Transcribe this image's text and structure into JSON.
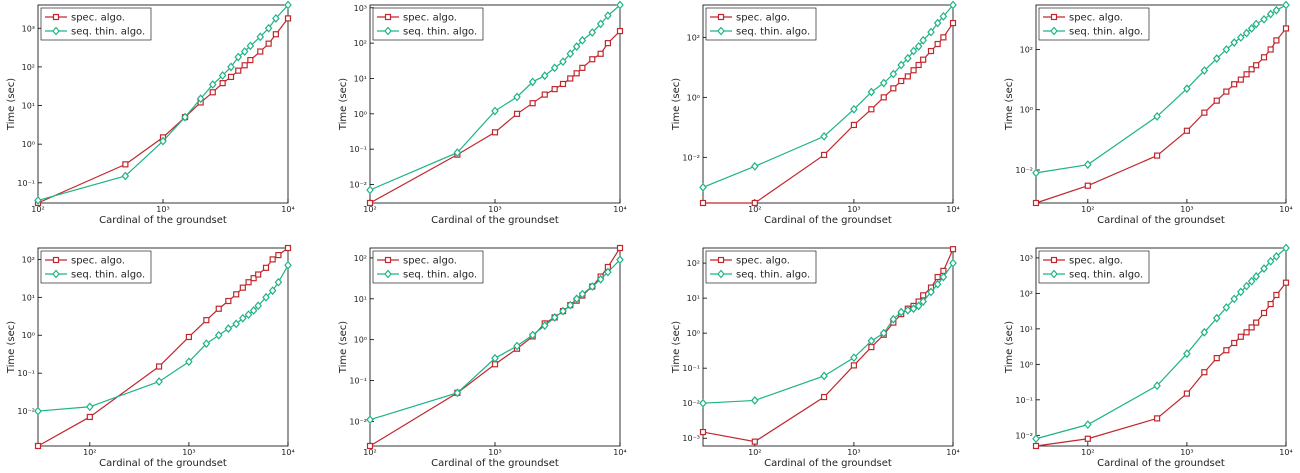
{
  "chart_data": [
    {
      "type": "line",
      "xlabel": "Cardinal of the groundset",
      "ylabel": "Time (sec)",
      "xscale": "log",
      "yscale": "log",
      "legend": "upper left",
      "x": [
        100,
        500,
        1000,
        1500,
        2000,
        2500,
        3000,
        3500,
        4000,
        4500,
        5000,
        6000,
        7000,
        8000,
        10000
      ],
      "xlim": [
        100,
        10000
      ],
      "ylim": [
        0.03,
        4000
      ],
      "xticks": [
        {
          "value": 100,
          "label": "10²"
        },
        {
          "value": 1000,
          "label": "10³"
        },
        {
          "value": 10000,
          "label": "10⁴"
        }
      ],
      "yticks": [
        {
          "value": 0.1,
          "label": "10⁻¹"
        },
        {
          "value": 1,
          "label": "10⁰"
        },
        {
          "value": 10,
          "label": "10¹"
        },
        {
          "value": 100,
          "label": "10²"
        },
        {
          "value": 1000,
          "label": "10³"
        }
      ],
      "series": [
        {
          "name": "spec. algo.",
          "color": "#c1272d",
          "marker": "square",
          "values": [
            0.03,
            0.3,
            1.5,
            5,
            12,
            22,
            38,
            55,
            80,
            110,
            150,
            250,
            400,
            700,
            1800
          ]
        },
        {
          "name": "seq. thin. algo.",
          "color": "#1db386",
          "marker": "diamond",
          "values": [
            0.035,
            0.15,
            1.2,
            5,
            15,
            35,
            60,
            100,
            180,
            250,
            350,
            600,
            1000,
            1800,
            4000
          ]
        }
      ]
    },
    {
      "type": "line",
      "xlabel": "Cardinal of the groundset",
      "ylabel": "Time (sec)",
      "xscale": "log",
      "yscale": "log",
      "legend": "upper left",
      "x": [
        100,
        500,
        1000,
        1500,
        2000,
        2500,
        3000,
        3500,
        4000,
        4500,
        5000,
        6000,
        7000,
        8000,
        10000
      ],
      "xlim": [
        100,
        10000
      ],
      "ylim": [
        0.003,
        1200
      ],
      "xticks": [
        {
          "value": 100,
          "label": "10²"
        },
        {
          "value": 1000,
          "label": "10³"
        },
        {
          "value": 10000,
          "label": "10⁴"
        }
      ],
      "yticks": [
        {
          "value": 0.01,
          "label": "10⁻²"
        },
        {
          "value": 0.1,
          "label": "10⁻¹"
        },
        {
          "value": 1,
          "label": "10⁰"
        },
        {
          "value": 10,
          "label": "10¹"
        },
        {
          "value": 100,
          "label": "10²"
        },
        {
          "value": 1000,
          "label": "10³"
        }
      ],
      "series": [
        {
          "name": "spec. algo.",
          "color": "#c1272d",
          "marker": "square",
          "values": [
            0.003,
            0.07,
            0.3,
            1,
            2,
            3.5,
            5,
            7,
            10,
            14,
            20,
            35,
            50,
            100,
            220
          ]
        },
        {
          "name": "seq. thin. algo.",
          "color": "#1db386",
          "marker": "diamond",
          "values": [
            0.007,
            0.08,
            1.2,
            3,
            8,
            12,
            20,
            30,
            50,
            80,
            120,
            200,
            350,
            600,
            1200
          ]
        }
      ]
    },
    {
      "type": "line",
      "xlabel": "Cardinal of the groundset",
      "ylabel": "Time (sec)",
      "xscale": "log",
      "yscale": "log",
      "legend": "upper left",
      "x": [
        30,
        100,
        500,
        1000,
        1500,
        2000,
        2500,
        3000,
        3500,
        4000,
        4500,
        5000,
        6000,
        7000,
        8000,
        10000
      ],
      "xlim": [
        30,
        10000
      ],
      "ylim": [
        0.0003,
        1200
      ],
      "xticks": [
        {
          "value": 100,
          "label": "10²"
        },
        {
          "value": 1000,
          "label": "10³"
        },
        {
          "value": 10000,
          "label": "10⁴"
        }
      ],
      "yticks": [
        {
          "value": 0.01,
          "label": "10⁻²"
        },
        {
          "value": 1,
          "label": "10⁰"
        },
        {
          "value": 100,
          "label": "10²"
        }
      ],
      "series": [
        {
          "name": "spec. algo.",
          "color": "#c1272d",
          "marker": "square",
          "values": [
            0.0003,
            0.0003,
            0.012,
            0.12,
            0.4,
            1,
            2,
            3.5,
            5,
            8,
            12,
            18,
            35,
            60,
            100,
            300
          ]
        },
        {
          "name": "seq. thin. algo.",
          "color": "#1db386",
          "marker": "diamond",
          "values": [
            0.001,
            0.005,
            0.05,
            0.4,
            1.5,
            3,
            6,
            12,
            20,
            35,
            50,
            80,
            150,
            300,
            500,
            1200
          ]
        }
      ]
    },
    {
      "type": "line",
      "xlabel": "Cardinal of the groundset",
      "ylabel": "Time (sec)",
      "xscale": "log",
      "yscale": "log",
      "legend": "upper left",
      "x": [
        30,
        100,
        500,
        1000,
        1500,
        2000,
        2500,
        3000,
        3500,
        4000,
        4500,
        5000,
        6000,
        7000,
        8000,
        10000
      ],
      "xlim": [
        30,
        10000
      ],
      "ylim": [
        0.0008,
        3000
      ],
      "xticks": [
        {
          "value": 100,
          "label": "10²"
        },
        {
          "value": 1000,
          "label": "10³"
        },
        {
          "value": 10000,
          "label": "10⁴"
        }
      ],
      "yticks": [
        {
          "value": 0.01,
          "label": "10⁻²"
        },
        {
          "value": 1,
          "label": "10⁰"
        },
        {
          "value": 100,
          "label": "10²"
        }
      ],
      "series": [
        {
          "name": "spec. algo.",
          "color": "#c1272d",
          "marker": "square",
          "values": [
            0.0008,
            0.003,
            0.03,
            0.2,
            0.8,
            2,
            4,
            7,
            10,
            15,
            22,
            30,
            55,
            100,
            200,
            500
          ]
        },
        {
          "name": "seq. thin. algo.",
          "color": "#1db386",
          "marker": "diamond",
          "values": [
            0.008,
            0.015,
            0.6,
            5,
            20,
            50,
            100,
            170,
            250,
            350,
            500,
            700,
            1000,
            1500,
            2000,
            3000
          ]
        }
      ]
    },
    {
      "type": "line",
      "xlabel": "Cardinal of the groundset",
      "ylabel": "Time (sec)",
      "xscale": "log",
      "yscale": "log",
      "legend": "upper left",
      "x": [
        30,
        100,
        500,
        1000,
        1500,
        2000,
        2500,
        3000,
        3500,
        4000,
        4500,
        5000,
        6000,
        7000,
        8000,
        10000
      ],
      "xlim": [
        30,
        10000
      ],
      "ylim": [
        0.0012,
        200
      ],
      "xticks": [
        {
          "value": 100,
          "label": "10²"
        },
        {
          "value": 1000,
          "label": "10³"
        },
        {
          "value": 10000,
          "label": "10⁴"
        }
      ],
      "yticks": [
        {
          "value": 0.01,
          "label": "10⁻²"
        },
        {
          "value": 0.1,
          "label": "10⁻¹"
        },
        {
          "value": 1,
          "label": "10⁰"
        },
        {
          "value": 10,
          "label": "10¹"
        },
        {
          "value": 100,
          "label": "10²"
        }
      ],
      "series": [
        {
          "name": "spec. algo.",
          "color": "#c1272d",
          "marker": "square",
          "values": [
            0.0012,
            0.007,
            0.15,
            0.9,
            2.5,
            5,
            8,
            12,
            18,
            25,
            32,
            40,
            60,
            100,
            130,
            200
          ]
        },
        {
          "name": "seq. thin. algo.",
          "color": "#1db386",
          "marker": "diamond",
          "values": [
            0.01,
            0.013,
            0.06,
            0.2,
            0.6,
            1,
            1.5,
            2,
            2.8,
            3.5,
            4.5,
            6,
            10,
            15,
            25,
            70
          ]
        }
      ]
    },
    {
      "type": "line",
      "xlabel": "Cardinal of the groundset",
      "ylabel": "Time (sec)",
      "xscale": "log",
      "yscale": "log",
      "legend": "upper left",
      "x": [
        100,
        500,
        1000,
        1500,
        2000,
        2500,
        3000,
        3500,
        4000,
        4500,
        5000,
        6000,
        7000,
        8000,
        10000
      ],
      "xlim": [
        100,
        10000
      ],
      "ylim": [
        0.0025,
        175
      ],
      "xticks": [
        {
          "value": 100,
          "label": "10²"
        },
        {
          "value": 1000,
          "label": "10³"
        },
        {
          "value": 10000,
          "label": "10⁴"
        }
      ],
      "yticks": [
        {
          "value": 0.01,
          "label": "10⁻²"
        },
        {
          "value": 0.1,
          "label": "10⁻¹"
        },
        {
          "value": 1,
          "label": "10⁰"
        },
        {
          "value": 10,
          "label": "10¹"
        },
        {
          "value": 100,
          "label": "10²"
        }
      ],
      "series": [
        {
          "name": "spec. algo.",
          "color": "#c1272d",
          "marker": "square",
          "values": [
            0.0025,
            0.05,
            0.25,
            0.6,
            1.2,
            2.5,
            3.5,
            5,
            7,
            9,
            12,
            20,
            35,
            60,
            175
          ]
        },
        {
          "name": "seq. thin. algo.",
          "color": "#1db386",
          "marker": "diamond",
          "values": [
            0.011,
            0.05,
            0.35,
            0.7,
            1.3,
            2.2,
            3.5,
            5,
            7,
            10,
            13,
            20,
            30,
            45,
            90
          ]
        }
      ]
    },
    {
      "type": "line",
      "xlabel": "Cardinal of the groundset",
      "ylabel": "Time (sec)",
      "xscale": "log",
      "yscale": "log",
      "legend": "upper left",
      "x": [
        30,
        100,
        500,
        1000,
        1500,
        2000,
        2500,
        3000,
        3500,
        4000,
        4500,
        5000,
        6000,
        7000,
        8000,
        10000
      ],
      "xlim": [
        30,
        10000
      ],
      "ylim": [
        0.0006,
        270
      ],
      "xticks": [
        {
          "value": 100,
          "label": "10²"
        },
        {
          "value": 1000,
          "label": "10³"
        },
        {
          "value": 10000,
          "label": "10⁴"
        }
      ],
      "yticks": [
        {
          "value": 0.001,
          "label": "10⁻³"
        },
        {
          "value": 0.01,
          "label": "10⁻²"
        },
        {
          "value": 0.1,
          "label": "10⁻¹"
        },
        {
          "value": 1,
          "label": "10⁰"
        },
        {
          "value": 10,
          "label": "10¹"
        },
        {
          "value": 100,
          "label": "10²"
        }
      ],
      "series": [
        {
          "name": "spec. algo.",
          "color": "#c1272d",
          "marker": "square",
          "values": [
            0.0015,
            0.0008,
            0.015,
            0.12,
            0.4,
            0.9,
            2,
            3.5,
            5,
            6,
            8,
            12,
            20,
            40,
            60,
            250
          ]
        },
        {
          "name": "seq. thin. algo.",
          "color": "#1db386",
          "marker": "diamond",
          "values": [
            0.01,
            0.012,
            0.06,
            0.2,
            0.6,
            1,
            2.5,
            4,
            4.5,
            5,
            6,
            8,
            15,
            25,
            40,
            100
          ]
        }
      ]
    },
    {
      "type": "line",
      "xlabel": "Cardinal of the groundset",
      "ylabel": "Time (sec)",
      "xscale": "log",
      "yscale": "log",
      "legend": "upper left",
      "x": [
        30,
        100,
        500,
        1000,
        1500,
        2000,
        2500,
        3000,
        3500,
        4000,
        4500,
        5000,
        6000,
        7000,
        8000,
        10000
      ],
      "xlim": [
        30,
        10000
      ],
      "ylim": [
        0.005,
        1900
      ],
      "xticks": [
        {
          "value": 100,
          "label": "10²"
        },
        {
          "value": 1000,
          "label": "10³"
        },
        {
          "value": 10000,
          "label": "10⁴"
        }
      ],
      "yticks": [
        {
          "value": 0.01,
          "label": "10⁻²"
        },
        {
          "value": 0.1,
          "label": "10⁻¹"
        },
        {
          "value": 1,
          "label": "10⁰"
        },
        {
          "value": 10,
          "label": "10¹"
        },
        {
          "value": 100,
          "label": "10²"
        },
        {
          "value": 1000,
          "label": "10³"
        }
      ],
      "series": [
        {
          "name": "spec. algo.",
          "color": "#c1272d",
          "marker": "square",
          "values": [
            0.005,
            0.008,
            0.03,
            0.15,
            0.6,
            1.5,
            2.5,
            4,
            6,
            8,
            11,
            15,
            28,
            50,
            90,
            200
          ]
        },
        {
          "name": "seq. thin. algo.",
          "color": "#1db386",
          "marker": "diamond",
          "values": [
            0.008,
            0.02,
            0.25,
            2,
            8,
            20,
            40,
            70,
            110,
            160,
            220,
            300,
            500,
            800,
            1100,
            1900
          ]
        }
      ]
    }
  ]
}
